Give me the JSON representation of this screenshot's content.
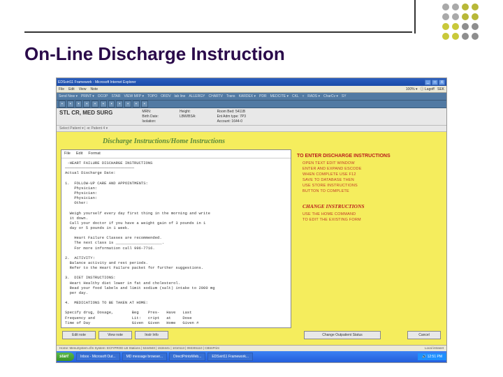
{
  "slide": {
    "title": "On-Line Discharge Instruction",
    "corner_dot_colors": [
      "#a9a9a9",
      "#a9a9a9",
      "#b8b838",
      "#b8b838",
      "#a9a9a9",
      "#a9a9a9",
      "#b8b838",
      "#b8b838",
      "#c9c93a",
      "#c9c93a",
      "#8e8e8e",
      "#8e8e8e",
      "#c9c93a",
      "#c9c93a",
      "#8e8e8e",
      "#8e8e8e"
    ]
  },
  "ie": {
    "title": "EDSvirt11 Framework - Microsoft Internet Explorer",
    "file_menu": "File",
    "edit_menu": "Edit",
    "view_menu": "View",
    "note_menu": "Note",
    "close": "X",
    "localintranet": "Local intranet"
  },
  "menubar": {
    "items": [
      "Send Now ▾",
      "PRINT ▾",
      "OCOP",
      "STAR",
      "VIEW MFP ▾",
      "TOPO",
      "ORDV",
      "lab line",
      "ALLERGY",
      "CHARTV",
      "Trans",
      "KARDEX ▾",
      "PDR",
      "MEDCITE ▾",
      "CKL",
      "▿",
      "RADS ▾",
      "CharCv ▾",
      "SY"
    ]
  },
  "toolbar": {
    "items": [
      "",
      "",
      "",
      "",
      "",
      "",
      "",
      "",
      "",
      "",
      ""
    ]
  },
  "patient": {
    "ward": "STL CR, MED SURG",
    "mrn_label": "MRN:",
    "birth_label": "Birth Date:",
    "isolation_label": "Isolation:",
    "height_label": "Height:",
    "lbwbsa_label": "LBW/BSA:",
    "room_label": "Room Bed:",
    "entadm_label": "Ent Adm type:",
    "account_label": "Account:",
    "room_val": "5411B",
    "entadm_val": "7P3",
    "account_val": "1644-0",
    "select_text": "Select Patient ▾  |  ≪  Patient  4 ▾"
  },
  "form": {
    "title": "Discharge Instructions/Home Instructions",
    "editor_menu": [
      "File",
      "Edit",
      "Format"
    ]
  },
  "editorText": " -HEART FAILURE DISCHARGE INSTRUCTIONS\n──────────────────────────────\nActual Discharge Date:\n\n1.  FOLLOW-UP CARE AND APPOINTMENTS:\n    Physician:\n    Physician:\n    Physician:\n    Other:\n\n  Weigh yourself every day first thing in the morning and write\n  it down.\n  Call your doctor if you have a weight gain of 3 pounds in 1\n  day or 5 pounds in 1 week.\n\n    Heart Failure Classes are recommended.\n    The next class is ____________________.\n    For more information call 996-7716.\n\n2.  ACTIVITY:\n  Balance activity and rest periods.\n  Refer to the Heart Failure packet for further suggestions.\n\n3.  DIET INSTRUCTIONS:\n  Heart Healthy diet lower in fat and cholesterol.\n  Read your food labels and limit sodium (salt) intake to 2000 mg\n  per day.\n\n4.  MEDICATIONS TO BE TAKEN AT HOME:\n\nSpecify drug, Dosage,        Beg    Pres-   Have   Last\nFrequency and                Lit:   cript   at     Dose\nTime of Day                  Given  Given   Home   Given #",
  "right": {
    "header1": "TO ENTER DISCHARGE INSTRUCTIONS",
    "items1": [
      "OPEN TEXT EDIT WINDOW",
      "ENTER AND EXPAND ESCODE",
      "WHEN COMPLETE USE F12",
      "SAVE TO DATABASE THEN",
      "USE STORE INSTRUCTIONS",
      "BUTTON TO COMPLETE"
    ],
    "header2": "CHANGE INSTRUCTIONS",
    "items2": [
      "USE THE HOME COMMAND",
      "TO EDIT THE EXISTING FORM"
    ]
  },
  "buttons": {
    "edit_note": "Edit note",
    "view_note": "View note",
    "instr_info": "Instr Info",
    "change_status": "Change Outpatient Status",
    "close": "Cancel"
  },
  "status": {
    "left": "Home: MenuSystem.cfm   System: ECFrPROD LB Stations | 5344940 | 1534441 | 1010113 | 093301110 | CBtmPrint"
  },
  "taskbar": {
    "start": "start",
    "items": [
      "Inbox - Microsoft Out...",
      "MD message browser...",
      "DirectPrintsWeb...",
      "EDSvirt11 Framework..."
    ],
    "time": "12:51 PM"
  }
}
